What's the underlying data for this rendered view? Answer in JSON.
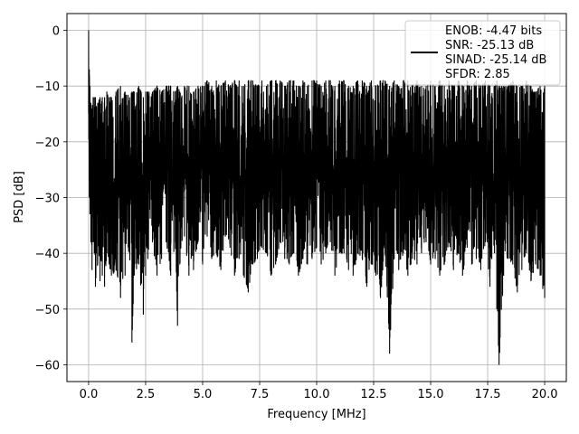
{
  "chart_data": {
    "type": "line",
    "xlabel": "Frequency [MHz]",
    "ylabel": "PSD [dB]",
    "xlim": [
      -0.95,
      20.95
    ],
    "ylim": [
      -63,
      3
    ],
    "x_ticks": [
      0.0,
      2.5,
      5.0,
      7.5,
      10.0,
      12.5,
      15.0,
      17.5,
      20.0
    ],
    "x_tick_labels": [
      "0.0",
      "2.5",
      "5.0",
      "7.5",
      "10.0",
      "12.5",
      "15.0",
      "17.5",
      "20.0"
    ],
    "y_ticks": [
      0,
      -10,
      -20,
      -30,
      -40,
      -50,
      -60
    ],
    "y_tick_labels": [
      "0",
      "−10",
      "−20",
      "−30",
      "−40",
      "−50",
      "−60"
    ],
    "grid": true,
    "legend_position": "top-right",
    "legend": [
      "ENOB: -4.47 bits",
      "SNR: -25.13 dB",
      "SINAD: -25.14 dB",
      "SFDR: 2.85"
    ],
    "series": [
      {
        "color": "#000000",
        "x": [
          0.0,
          0.03,
          0.06,
          0.1,
          0.15,
          0.2,
          0.25,
          0.3,
          0.4,
          0.5,
          0.6,
          0.7,
          0.8,
          0.9,
          1.0,
          1.2,
          1.4,
          1.6,
          1.8,
          1.9,
          2.0,
          2.2,
          2.4,
          2.5,
          2.6,
          2.8,
          3.0,
          3.2,
          3.4,
          3.6,
          3.8,
          3.9,
          4.0,
          4.2,
          4.4,
          4.6,
          4.8,
          5.0,
          5.2,
          5.4,
          5.6,
          5.8,
          6.0,
          6.2,
          6.4,
          6.6,
          6.8,
          7.0,
          7.2,
          7.4,
          7.6,
          7.8,
          8.0,
          8.2,
          8.4,
          8.6,
          8.8,
          9.0,
          9.2,
          9.4,
          9.6,
          9.8,
          10.0,
          10.2,
          10.4,
          10.6,
          10.8,
          11.0,
          11.2,
          11.4,
          11.6,
          11.8,
          12.0,
          12.2,
          12.4,
          12.6,
          12.8,
          13.0,
          13.2,
          13.4,
          13.6,
          13.8,
          14.0,
          14.2,
          14.4,
          14.6,
          14.8,
          15.0,
          15.2,
          15.4,
          15.6,
          15.8,
          16.0,
          16.2,
          16.4,
          16.6,
          16.8,
          17.0,
          17.2,
          17.4,
          17.6,
          17.8,
          17.9,
          18.0,
          18.2,
          18.4,
          18.6,
          18.8,
          19.0,
          19.2,
          19.4,
          19.6,
          19.8,
          20.0
        ],
        "y_high": [
          0,
          -7,
          -10,
          -13,
          -14,
          -12,
          -12,
          -12,
          -13,
          -12,
          -12,
          -12,
          -11,
          -12,
          -12,
          -11,
          -10,
          -11,
          -12,
          -11,
          -11,
          -10,
          -12,
          -11,
          -11,
          -11,
          -10,
          -11,
          -10,
          -10,
          -11,
          -10,
          -11,
          -10,
          -10,
          -11,
          -10,
          -10,
          -9,
          -10,
          -9,
          -10,
          -9,
          -10,
          -9,
          -9,
          -10,
          -9,
          -9,
          -10,
          -9,
          -10,
          -9,
          -9,
          -9,
          -10,
          -9,
          -9,
          -10,
          -9,
          -10,
          -9,
          -9,
          -10,
          -9,
          -9,
          -10,
          -9,
          -9,
          -10,
          -10,
          -9,
          -9,
          -10,
          -9,
          -10,
          -9,
          -9,
          -10,
          -9,
          -10,
          -9,
          -9,
          -10,
          -9,
          -10,
          -10,
          -9,
          -10,
          -9,
          -10,
          -9,
          -10,
          -9,
          -10,
          -9,
          -10,
          -9,
          -10,
          -9,
          -10,
          -10,
          -9,
          -10,
          -10,
          -10,
          -9,
          -10,
          -10,
          -9,
          -10,
          -11,
          -10,
          -10
        ],
        "y_low": [
          -15,
          -30,
          -33,
          -38,
          -43,
          -38,
          -40,
          -46,
          -42,
          -45,
          -44,
          -46,
          -40,
          -42,
          -44,
          -43,
          -48,
          -44,
          -40,
          -56,
          -44,
          -42,
          -51,
          -44,
          -41,
          -38,
          -44,
          -41,
          -38,
          -44,
          -38,
          -53,
          -42,
          -37,
          -44,
          -43,
          -38,
          -42,
          -37,
          -41,
          -40,
          -43,
          -37,
          -39,
          -44,
          -41,
          -44,
          -47,
          -42,
          -41,
          -39,
          -40,
          -44,
          -42,
          -38,
          -41,
          -42,
          -40,
          -44,
          -41,
          -42,
          -41,
          -39,
          -42,
          -40,
          -38,
          -44,
          -40,
          -40,
          -43,
          -44,
          -40,
          -41,
          -46,
          -42,
          -44,
          -48,
          -40,
          -58,
          -41,
          -43,
          -40,
          -44,
          -41,
          -42,
          -40,
          -38,
          -42,
          -41,
          -44,
          -42,
          -38,
          -43,
          -40,
          -44,
          -39,
          -42,
          -41,
          -43,
          -38,
          -46,
          -40,
          -50,
          -60,
          -44,
          -41,
          -42,
          -47,
          -43,
          -40,
          -45,
          -42,
          -44,
          -48
        ]
      }
    ]
  }
}
